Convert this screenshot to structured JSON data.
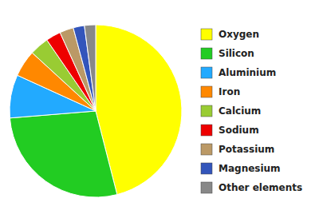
{
  "chart_data": {
    "type": "pie",
    "categories": [
      "Oxygen",
      "Silicon",
      "Aluminium",
      "Iron",
      "Calcium",
      "Sodium",
      "Potassium",
      "Magnesium",
      "Other elements"
    ],
    "values": [
      46.0,
      27.7,
      8.1,
      5.0,
      3.6,
      2.8,
      2.6,
      2.1,
      2.1
    ],
    "colors": [
      "#FFFF00",
      "#22CC22",
      "#22AAFF",
      "#FF8800",
      "#99CC33",
      "#EE0000",
      "#BB9966",
      "#3355BB",
      "#888888"
    ],
    "legend": "right"
  }
}
